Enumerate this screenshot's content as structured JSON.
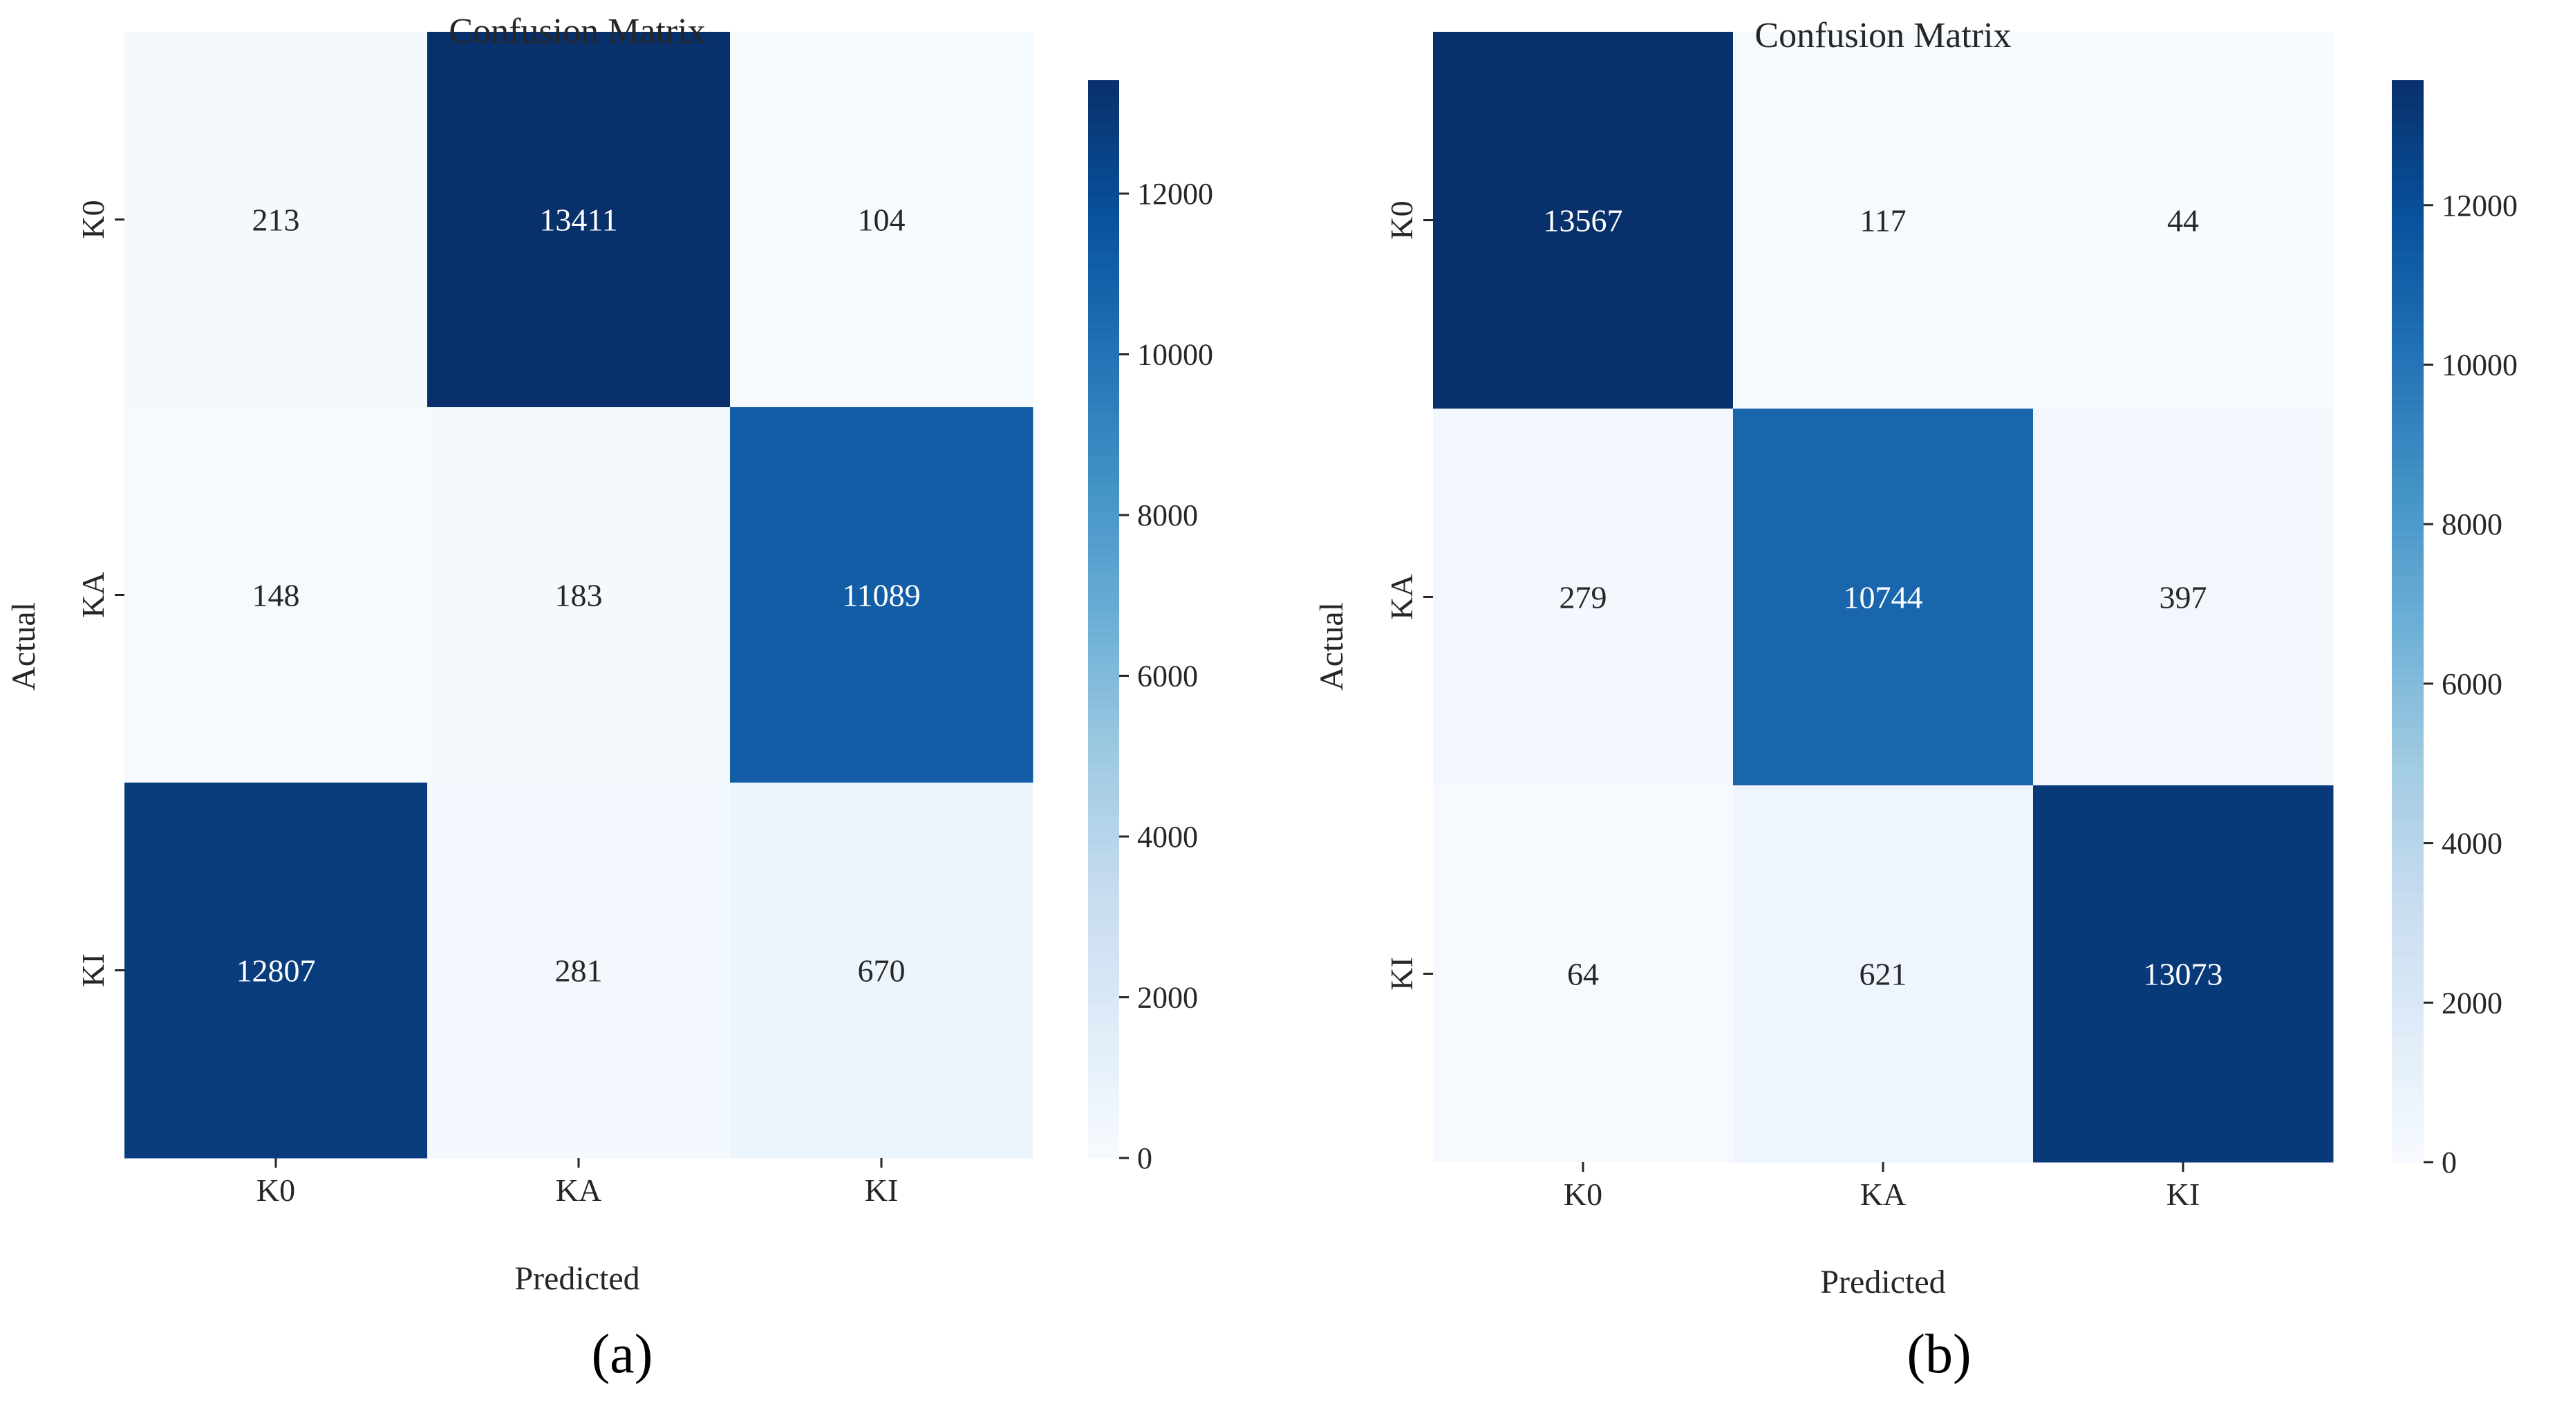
{
  "colors": {
    "cmap_stops": [
      "#f7fbff",
      "#deebf7",
      "#c6dbef",
      "#9ecae1",
      "#6baed6",
      "#4292c6",
      "#2171b5",
      "#08519c",
      "#08306b"
    ],
    "text_dark": "#262626",
    "text_light": "#ffffff",
    "axis": "#262626"
  },
  "chart_data": [
    {
      "type": "heatmap",
      "panel_label": "(a)",
      "title": "Confusion Matrix",
      "xlabel": "Predicted",
      "ylabel": "Actual",
      "x_categories": [
        "K0",
        "KA",
        "KI"
      ],
      "y_categories": [
        "K0",
        "KA",
        "KI"
      ],
      "values": [
        [
          213,
          13411,
          104
        ],
        [
          148,
          183,
          11089
        ],
        [
          12807,
          281,
          670
        ]
      ],
      "vmin": 0,
      "vmax": 13411,
      "colorbar_ticks": [
        0,
        2000,
        4000,
        6000,
        8000,
        10000,
        12000
      ]
    },
    {
      "type": "heatmap",
      "panel_label": "(b)",
      "title": "Confusion Matrix",
      "xlabel": "Predicted",
      "ylabel": "Actual",
      "x_categories": [
        "K0",
        "KA",
        "KI"
      ],
      "y_categories": [
        "K0",
        "KA",
        "KI"
      ],
      "values": [
        [
          13567,
          117,
          44
        ],
        [
          279,
          10744,
          397
        ],
        [
          64,
          621,
          13073
        ]
      ],
      "vmin": 0,
      "vmax": 13567,
      "colorbar_ticks": [
        0,
        2000,
        4000,
        6000,
        8000,
        10000,
        12000
      ]
    }
  ]
}
